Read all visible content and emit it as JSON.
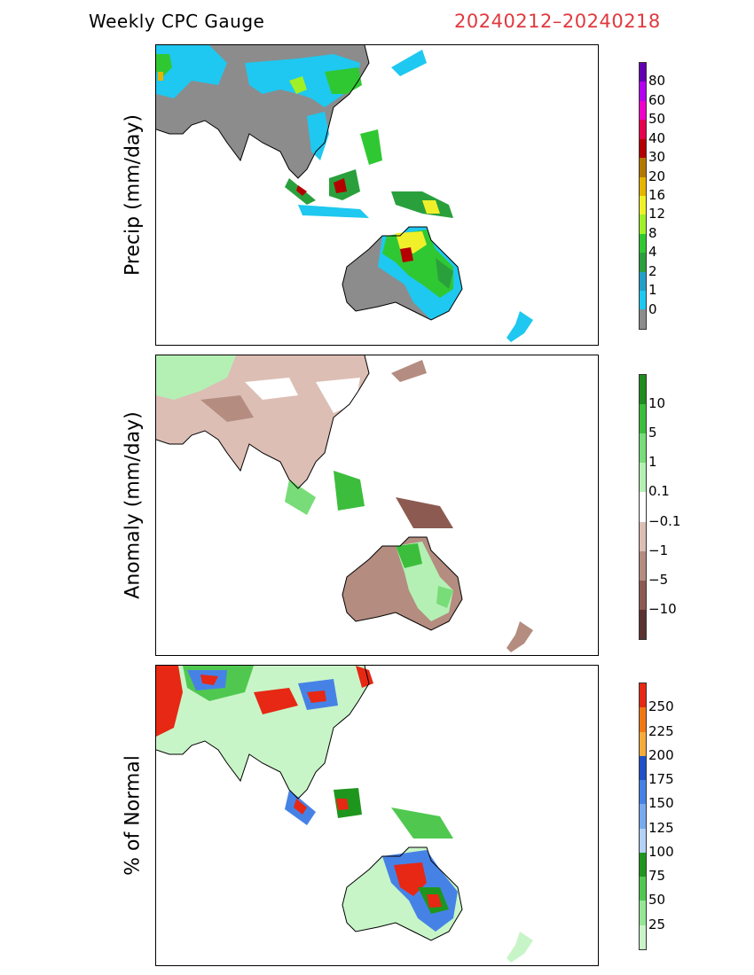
{
  "header": {
    "title": "Weekly CPC Gauge",
    "date_range": "20240212–20240218"
  },
  "panels": [
    {
      "label": "Precip (mm/day)",
      "colorbar": {
        "colors": [
          "#8c8c8c",
          "#1ec8f0",
          "#20a0c8",
          "#2aa03c",
          "#30c832",
          "#a0f028",
          "#f0f02a",
          "#e6b400",
          "#b47800",
          "#b40000",
          "#e60050",
          "#f000c8",
          "#b400f0",
          "#6400b4"
        ],
        "labels": [
          "0",
          "1",
          "2",
          "4",
          "8",
          "12",
          "16",
          "20",
          "30",
          "40",
          "50",
          "60",
          "80"
        ]
      }
    },
    {
      "label": "Anomaly (mm/day)",
      "colorbar": {
        "colors": [
          "#5a3230",
          "#8c5a50",
          "#b48c80",
          "#dcbeb4",
          "#ffffff",
          "#b4f0b4",
          "#78dc78",
          "#3cbe3c",
          "#1e8c1e"
        ],
        "labels": [
          "−10",
          "−5",
          "−1",
          "−0.1",
          "0.1",
          "1",
          "5",
          "10"
        ]
      }
    },
    {
      "label": "% of Normal",
      "colorbar": {
        "colors": [
          "#c8f5c8",
          "#96e696",
          "#50c850",
          "#1e961e",
          "#b4d2f5",
          "#78aaf0",
          "#4682e6",
          "#1e50c8",
          "#f5aa3c",
          "#f07814",
          "#e62814"
        ],
        "labels": [
          "25",
          "50",
          "75",
          "100",
          "125",
          "150",
          "175",
          "200",
          "225",
          "250"
        ]
      }
    }
  ]
}
